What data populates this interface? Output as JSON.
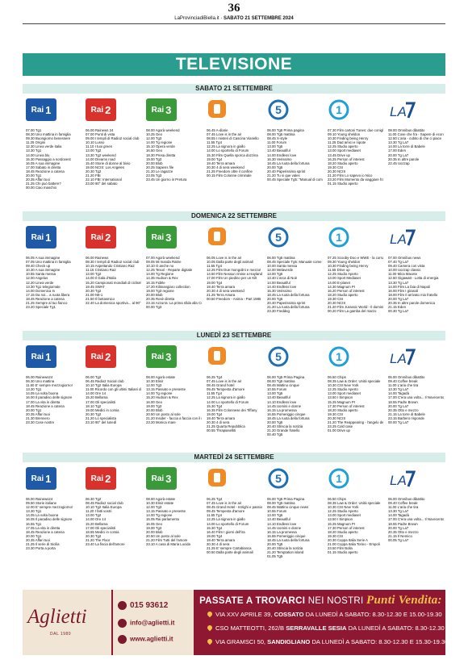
{
  "page_number": "36",
  "masthead": {
    "paper": "LaProvinciadiBiella.it",
    "date": "SABATO 21 SETTEMBRE 2024"
  },
  "section_title": "TELEVISIONE",
  "channels": [
    "Rai 1",
    "Rai 2",
    "Rai 3",
    "Rete 4",
    "Canale 5",
    "Italia 1",
    "La7"
  ],
  "days": [
    {
      "title": "SABATO 21 SETTEMBRE",
      "schedules": [
        [
          "07.00 Tg1",
          "08.30 Uno mattina in famiglia",
          "09.30 Buongiorno benessere",
          "11.25 Origini",
          "12.30 Linea verde italia",
          "13.30 Tg1",
          "14.00 Linea blu",
          "15.30 Passaggio a nordovest",
          "16.05 A sua immagine",
          "17.00 Sabato in diretta",
          "18.45 Reazione a catena",
          "20.00 Tg1",
          "20.35 Affari tuoi",
          "21.25 Chi può battere?",
          "00.00 Ciao maschio"
        ],
        [
          "06.00 Rainews 24",
          "07.00 Punti di vista",
          "09.00 I templi di Radio2 social club",
          "10.10 Lusso",
          "11.10 I tuoi green",
          "13.00 Tg2",
          "13.30 Tg2 weekend",
          "14.00 Dreams road",
          "15.40 Storie di donne al bivio",
          "19.00 NCIS: Los Angeles",
          "20.30 Tg2",
          "21.20 FBI",
          "22.10 FBI: International",
          "23.00 90° del sabato"
        ],
        [
          "08.00 Agorà weekend",
          "10.25 Geo",
          "12.00 Tg3",
          "14.00 Tg regione",
          "15.10 Opera verde",
          "16.50 Geo",
          "18.30 Presa diretta",
          "19.00 Tg3",
          "20.00 Blob",
          "20.25 Sapiens file",
          "21.20 Le ragazze",
          "23.05 Tg3",
          "23.45 Un giorno in Pretura"
        ],
        [
          "06.45 A-diarie",
          "07.45 Love is in the air",
          "08.55 I misteri di Cascina Vianello",
          "11.55 Tg4",
          "12.25 La signora in giallo",
          "14.00 Lo sportello di Forum",
          "15.30 Film Quella sporca dozzina",
          "19.00 Tg4",
          "19.40 Terra amara",
          "20.30 4 di sera weekend",
          "21.25 Freedom oltre il confine",
          "00.15 Film Colonne criminale"
        ],
        [
          "06.00 Tg5 Prima pagina",
          "08.00 Tg5 mattina",
          "08.45 X-style",
          "11.00 Forum",
          "13.00 Tg5",
          "13.40 Beautiful",
          "14.00 Endless love",
          "16.30 Verissimo",
          "18.45 La ruota della fortuna",
          "20.00 Tg5",
          "20.40 Paperissima sprint",
          "21.20 Tu si que vales",
          "00.45 Speciale Tg5: \"Manual di come fare\""
        ],
        [
          "07.30 Film cartoni Tunes: due conigli",
          "09.10 Young sheldon",
          "10.30 Finding being Henry",
          "11.25 Dad amici e nipote",
          "12.25 Studio aperto",
          "13.00 Sport mediaset",
          "13.45 Drive up",
          "16.25 Person of interest",
          "18.20 Studio aperto",
          "19.30 CSI",
          "20.30 NCIS",
          "21.20 Film Lo sapevo io Nico",
          "23.20 Film Momento da viaggiare fra cose",
          "01.15 Studio aperto"
        ],
        [
          "08.00 Omnibus dibattito",
          "11.00 Cose che fra - Sapere di economia e reportage",
          "12.50 L'aria - cubito di che ci piace",
          "13.30 Tg La7",
          "14.00 La torre di Babele",
          "17.00 Eden",
          "20.00 Tg La7",
          "20.35 In altre parole",
          "22.45 Uozzap"
        ]
      ]
    },
    {
      "title": "DOMENICA 22 SETTEMBRE",
      "schedules": [
        [
          "06.05 A sua immagine",
          "07.05 Uno mattina in famiglia",
          "09.40 Check up",
          "10.30 A sua immagine",
          "10.55 Santa messa",
          "12.00 Angelus",
          "12.20 Linea verde",
          "13.30 Tg1 telegiornale",
          "14.00 Domenica In",
          "17.15 Da noi... a ruota libera",
          "18.45 Reazione a catena",
          "21.25 Sempre al tuo fianco",
          "23.20 Speciale Tg1"
        ],
        [
          "06.00 Rainews",
          "08.30 I templi di Radio2 social club",
          "10.15 Aspettando Cristiano Ra2",
          "11.15 Cristiano Ra2",
          "13.00 Tg2",
          "14.00 Il Gala d'Italia",
          "15.20 Campionati mondiali di ciclismo su strada 2024",
          "19.45 SWAT",
          "20.30 Tg2",
          "21.00 N9-1",
          "21.50 Il fantasmico",
          "22.40 La domenica sportiva... al 90°"
        ],
        [
          "07.00 Agorà weekend",
          "09.05 Mi manda Raitre",
          "10.10 O anche no",
          "12.25 Tesori - Reparte digitale",
          "14.00 Tg Regione",
          "14.35 Hudson & Rex",
          "16.15 Fidèle",
          "17.20 Kilimangiaro collection",
          "19.00 Tg3 regione",
          "20.00 Blob",
          "20.35 Rosè diretta",
          "23.15 Azzurra: La prima sfida alla Coppa America",
          "00.00 Tg3"
        ],
        [
          "06.05 Love is in the air",
          "10.05 Dalla parte degli animali",
          "11.55 Tg4",
          "12.25 Film Due mongolini e mezzo!",
          "14.50 Film Nessun rimise a Hayland",
          "17.00 Film Un piedino per un Kilt",
          "19.00 Tg4",
          "19.40 Terra amara",
          "20.30 4 di sera weekend",
          "21.25 Terra Amara",
          "00.50 Freedom - Anima - Part 1985"
        ],
        [
          "06.00 Tg5 mattina",
          "08.45 Speciale Tg5: Manuale come fare",
          "10.00 Santa messa",
          "12.00 Melaverde",
          "13.00 Tg5",
          "13.40 L'arca di Noè",
          "14.00 Beautiful",
          "14.40 Endless love",
          "15.30 Verissimo",
          "18.45 La ruota della fortuna",
          "20.00 Tg5",
          "20.40 Paperissima sprint",
          "21.20 La ruota della fortuna",
          "23.30 Freddeg"
        ],
        [
          "07.25 Scooby-Doo e WWE - la corsa dei mitici Wrestlers",
          "09.30 Young sheldon",
          "10.30 Finding being Henry",
          "11.55 Drive up",
          "12.25 Studio Aperto",
          "13.00 Sport Mediaset",
          "14.00 E-planet",
          "14.30 Magnum PI",
          "16.20 Person of interest",
          "18.20 Studio aperto",
          "19.30 CSI",
          "20.30 NCIS",
          "21.20 Film Jurassic World - Il dominio",
          "00.20 Film La gamba del marzo"
        ],
        [
          "07.00 Omnibus news",
          "07.40 Tg La7",
          "09.40 Camera con vista",
          "10.00 Uozzap classic",
          "11.00 Mica Macete",
          "12.50 Gigawatt - Lotta di energia",
          "13.30 Tg La7",
          "14.00 Film La faia di Napoli",
          "16.00 Film I girasoli",
          "18.00 Film Il arrivato mio fratello",
          "20.00 Tg La7",
          "20.35 In altre parole domenica",
          "21.15 Eden",
          "00.30 Tg La7"
        ]
      ]
    },
    {
      "title": "LUNEDÌ 23 SETTEMBRE",
      "schedules": [
        [
          "06.00 Rainews24",
          "06.30 Uno mattina",
          "11.50 E' sempre mezzogiorno!",
          "13.30 Tg1",
          "14.05 La volta buona",
          "16.00 Il paradiso delle signore",
          "17.00 La vita in diretta",
          "18.45 Reazione a catena",
          "20.00 Tg1",
          "20.35 Affari tuoi",
          "21.30 Brennero",
          "23.30 Cose nostre"
        ],
        [
          "06.00 Tg2",
          "06.45 Radio2 Social club",
          "10.10 Tg2 Italia Europa",
          "11.00 Ricordo con gli ultimi Italiani di cronache, politica e giustizia di Tg2",
          "14.00 Ore 14",
          "15.20 Bellama",
          "17.00 Gli specialisti",
          "18.10 Tg2",
          "19.00 Medici in corsia",
          "20.30 Tg2",
          "21.20 Lo specialista",
          "23.10 90° del lunedì"
        ],
        [
          "08.00 Agorà estate",
          "10.30 Elisir",
          "12.00 Tg3",
          "13.15 Passato e presente",
          "14.00 Tg regione",
          "15.20 Hudson & Rex",
          "16.00 Geo",
          "19.00 Tg3",
          "20.00 Blob",
          "20.50 Un posto al sole",
          "21.20 Insider - faccia a faccia con il crimine",
          "23.20 Monica mare"
        ],
        [
          "06.25 Tg4",
          "07.45 Love is in the air",
          "08.45 Grand hotel",
          "09.45 Tempesta d'amore",
          "11.55 Tg4",
          "12.25 La signora in giallo",
          "14.00 Lo sportello di Forum",
          "15.30 Tg4",
          "16.35 Film Colonnese dei Tiffany",
          "19.00 Tg4",
          "19.40 Terra amara",
          "20.30 4 di sera",
          "21.25 Quarta Repubblica",
          "00.55 Thrapiaseltiti"
        ],
        [
          "06.00 Tg5 Prima Pagina",
          "08.00 Tg5 mattina",
          "08.45 Mattino cinque",
          "10.55 Forum",
          "13.00 Tg5",
          "13.40 Beautiful",
          "14.10 Endless love",
          "14.45 Uomini e donne",
          "16.15 La promessa",
          "16.55 Pomeriggio cinque",
          "18.45 La ruota della fortuna",
          "20.00 Tg5",
          "20.40 Striscia la notizia",
          "21.20 Grande fratello",
          "00.40 Tg5"
        ],
        [
          "06.50 Chips",
          "08.35 Law & Order: Unità speciale",
          "10.30 CSI New York",
          "12.25 Studio Aperto",
          "13.00 Sport mediaset",
          "13.50 I Simpson",
          "15.25 Magnum PI",
          "17.30 Person of interest",
          "18.20 Studio aperto",
          "19.30 CSI",
          "20.30 NCIS",
          "21.20 The Reappearing - l'angelo della vendetta",
          "23.25 Cold case",
          "01.00 Drive up"
        ],
        [
          "06.00 Omnibus dibattito",
          "09.40 Coffee break",
          "11.00 L'aria che tira",
          "13.30 Tg La7",
          "14.00 Tagadà",
          "17.00 C'era una volta... Il Novecento",
          "18.55 Padre Brown",
          "20.00 Tg La7",
          "20.35 Otto e mezzo",
          "21.15 La torre di Babele",
          "23.15 Barbero risponde",
          "00.00 Tg La7"
        ]
      ]
    },
    {
      "title": "MARTEDÌ 24 SETTEMBRE",
      "schedules": [
        [
          "06.00 Rainews24",
          "09.50 Storie italiane",
          "12.00 E' sempre mezzogiorno!",
          "13.30 Tg1",
          "14.05 La volta buona",
          "16.05 Il paradiso delle signore",
          "16.55 Tg1",
          "17.05 La vita in diretta",
          "18.45 Reazione a catena",
          "20.00 Tg1",
          "20.35 Affari tuoi",
          "21.25 Il serie di Sicilia",
          "23.30 Porta a porta"
        ],
        [
          "06.30 Tg2",
          "08.45 Radio2 social club",
          "10.10 Tg2 Italia Europa",
          "11.20 I fatti vostri",
          "13.00 Tg2",
          "14.00 Ore 14",
          "15.20 Bellama",
          "17.00 Gli specialisti",
          "18.55 Medici in corsia",
          "20.30 Tg2",
          "21.20 The Floor",
          "23.40 La fiscia dell'amore"
        ],
        [
          "08.00 Agorà estate",
          "10.30 Elisir estate",
          "12.00 Tg3",
          "13.15 Passato e presente",
          "14.00 Tg regione",
          "15.05 Rai parlamento",
          "16.05 Geo",
          "19.00 Tg3",
          "20.00 Blob",
          "20.50 Un posto al sole",
          "21.20 Film Tutti del l'amore",
          "23.10 A casa di Maria Lucida"
        ],
        [
          "06.25 Tg4",
          "07.45 Love is in the air",
          "08.45 Grand Hotel - Intrighi e passioni",
          "09.45 Tempesta d'amore",
          "11.55 Tg4",
          "12.25 La signora in giallo",
          "14.00 Lo sportello di Forum",
          "15.30 Tg4",
          "16.40 Film I giorni dell'ira",
          "19.00 Tg4",
          "19.40 Terra amara",
          "20.30 4 di sera",
          "21.25 E' sempre Cartabianca",
          "00.50 Dalla parte degli animali"
        ],
        [
          "06.00 Tg5 Prima Pagina",
          "08.00 Tg5 mattina",
          "08.45 Mattino cinque news",
          "10.55 Forum",
          "13.00 Tg5",
          "13.40 Beautiful",
          "14.10 Endless love",
          "14.45 Uomini e donne",
          "16.15 La promessa",
          "16.55 Pomeriggio cinque",
          "18.45 La ruota della fortuna",
          "20.00 Tg5",
          "20.40 Striscia la notizia",
          "21.20 Temptation island",
          "01.05 Tg5"
        ],
        [
          "06.50 Chips",
          "08.35 Law & Order: Unità speciale",
          "10.30 CSI New York",
          "12.25 Studio Aperto",
          "13.00 Sport mediaset",
          "13.50 I Simpson",
          "15.25 Magnum PI",
          "17.30 Person of interest",
          "18.20 Studio aperto",
          "19.30 CSI",
          "20.30 Coppa Italia Serie A",
          "21.00 Coppa Italia Torino - Empoli",
          "23.50 Film Bolla",
          "01.15 Studio aperto"
        ],
        [
          "06.00 Omnibus dibattito",
          "09.40 Coffee break",
          "11.00 L'aria che tira",
          "13.30 Tg La7",
          "14.00 Tagadà",
          "17.00 C'era una volta... Il Novecento",
          "18.55 Padre Brown",
          "20.00 Tg La7",
          "20.35 Otto e mezzo",
          "21.15 Il Nemico",
          "00.05 Tg La7"
        ]
      ]
    }
  ],
  "advert": {
    "brand": "Aglietti",
    "since": "DAL 1980",
    "phone": "015 93612",
    "email": "info@aglietti.it",
    "website": "www.aglietti.it",
    "headline_a": "PASSATE A TROVARCI",
    "headline_b": "NEI NOSTRI",
    "headline_c": "Punti Vendita:",
    "stores": [
      {
        "address": "VIA XXV APRILE 39,",
        "town": "COSSATO",
        "hours": "DA LUNEDÌ A SABATO: 8.30-12.30 E 15.00-19.30"
      },
      {
        "address": "CSO MATTEOTTI, 262/B",
        "town": "SERRAVALLE SESIA",
        "hours": "DA LUNEDÌ A SABATO: 8.30-12.30 E 15.30-19.30"
      },
      {
        "address": "VIA GRAMSCI 50,",
        "town": "SANDIGLIANO",
        "hours": "DA LUNEDÌ A SABATO: 8.30-12.30 E 15.30-19.30"
      }
    ]
  },
  "colors": {
    "title_bar": "#2a9d8f",
    "day_header": "#d7ede9",
    "rai1": "#1e5aa8",
    "rai2": "#d9322c",
    "rai3": "#3a9a3a",
    "rete4": "#f08a24",
    "canale5": "#1f6fb3",
    "italia1": "#20a0d8",
    "la7": "#1b4d8f",
    "ad": "#8e1831"
  }
}
